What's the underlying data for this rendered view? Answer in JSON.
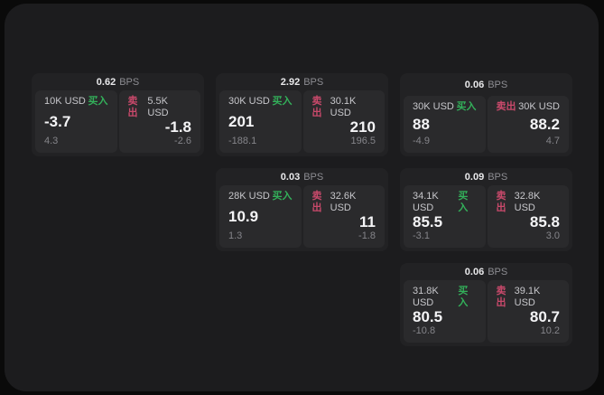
{
  "colors": {
    "page_background": "#0a0a0a",
    "window_background": "#1c1c1e",
    "card_background": "#222224",
    "panel_background": "#2a2a2c",
    "buy_accent": "#33b05a",
    "sell_accent": "#c9496b"
  },
  "cards": [
    {
      "bps": "0.62",
      "bps_unit": "BPS",
      "grid": {
        "row": 1,
        "col": 1
      },
      "buy": {
        "side_label": "买入",
        "size": "10K USD",
        "value": "-3.7",
        "delta": "4.3"
      },
      "sell": {
        "side_label": "卖出",
        "size": "5.5K USD",
        "value": "-1.8",
        "delta": "-2.6"
      }
    },
    {
      "bps": "2.92",
      "bps_unit": "BPS",
      "grid": {
        "row": 1,
        "col": 2
      },
      "buy": {
        "side_label": "买入",
        "size": "30K USD",
        "value": "201",
        "delta": "-188.1"
      },
      "sell": {
        "side_label": "卖出",
        "size": "30.1K USD",
        "value": "210",
        "delta": "196.5"
      }
    },
    {
      "bps": "0.06",
      "bps_unit": "BPS",
      "grid": {
        "row": 1,
        "col": 3
      },
      "buy": {
        "side_label": "买入",
        "size": "30K USD",
        "value": "88",
        "delta": "-4.9"
      },
      "sell": {
        "side_label": "卖出",
        "size": "30K USD",
        "value": "88.2",
        "delta": "4.7"
      }
    },
    {
      "bps": "0.03",
      "bps_unit": "BPS",
      "grid": {
        "row": 2,
        "col": 2
      },
      "buy": {
        "side_label": "买入",
        "size": "28K USD",
        "value": "10.9",
        "delta": "1.3"
      },
      "sell": {
        "side_label": "卖出",
        "size": "32.6K USD",
        "value": "11",
        "delta": "-1.8"
      }
    },
    {
      "bps": "0.09",
      "bps_unit": "BPS",
      "grid": {
        "row": 2,
        "col": 3
      },
      "buy": {
        "side_label": "买入",
        "size": "34.1K USD",
        "value": "85.5",
        "delta": "-3.1"
      },
      "sell": {
        "side_label": "卖出",
        "size": "32.8K USD",
        "value": "85.8",
        "delta": "3.0"
      }
    },
    {
      "bps": "0.06",
      "bps_unit": "BPS",
      "grid": {
        "row": 3,
        "col": 3
      },
      "buy": {
        "side_label": "买入",
        "size": "31.8K USD",
        "value": "80.5",
        "delta": "-10.8"
      },
      "sell": {
        "side_label": "卖出",
        "size": "39.1K USD",
        "value": "80.7",
        "delta": "10.2"
      }
    }
  ]
}
